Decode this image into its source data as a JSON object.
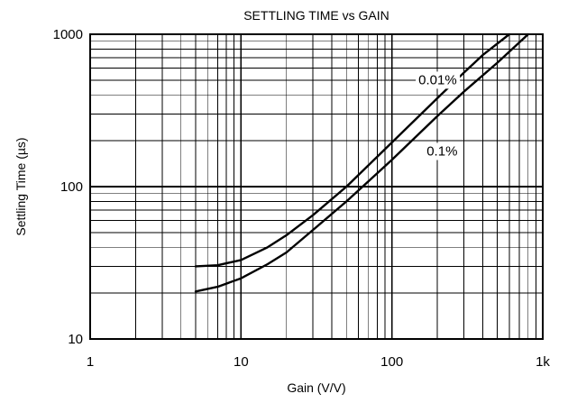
{
  "chart_data": {
    "type": "line",
    "title": "SETTLING TIME vs GAIN",
    "xlabel": "Gain (V/V)",
    "ylabel": "Settling Time (µs)",
    "x_scale": "log",
    "y_scale": "log",
    "xlim": [
      1,
      1000
    ],
    "ylim": [
      10,
      1000
    ],
    "x_ticks": [
      {
        "value": 1,
        "label": "1"
      },
      {
        "value": 10,
        "label": "10"
      },
      {
        "value": 100,
        "label": "100"
      },
      {
        "value": 1000,
        "label": "1k"
      }
    ],
    "y_ticks": [
      {
        "value": 10,
        "label": "10"
      },
      {
        "value": 100,
        "label": "100"
      },
      {
        "value": 1000,
        "label": "1000"
      }
    ],
    "grid": true,
    "series": [
      {
        "name": "0.01%",
        "x": [
          5,
          7,
          10,
          15,
          20,
          30,
          50,
          100,
          200,
          300,
          400,
          600
        ],
        "y": [
          30,
          30.5,
          33,
          40,
          48,
          65,
          100,
          195,
          380,
          560,
          730,
          1000
        ]
      },
      {
        "name": "0.1%",
        "x": [
          5,
          7,
          10,
          15,
          20,
          30,
          50,
          100,
          200,
          300,
          500,
          800
        ],
        "y": [
          20.5,
          22,
          25,
          31,
          37,
          52,
          80,
          150,
          290,
          420,
          650,
          1000
        ]
      }
    ]
  }
}
